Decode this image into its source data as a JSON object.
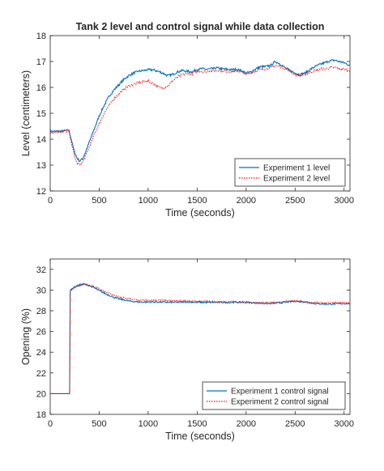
{
  "colors": {
    "series1": "#0072BD",
    "series2": "#FF0000",
    "axis": "#262626",
    "background": "#ffffff"
  },
  "chart_data": [
    {
      "type": "line",
      "title": "Tank 2 level and control signal while data collection",
      "xlabel": "Time (seconds)",
      "ylabel": "Level (centimeters)",
      "xlim": [
        0,
        3060
      ],
      "ylim": [
        12,
        18
      ],
      "xticks": [
        0,
        500,
        1000,
        1500,
        2000,
        2500,
        3000
      ],
      "yticks": [
        12,
        13,
        14,
        15,
        16,
        17,
        18
      ],
      "grid": false,
      "legend_position": "bottom-right",
      "series": [
        {
          "name": "Experiment 1 level",
          "style": "solid",
          "color": "#0072BD",
          "x": [
            0,
            100,
            190,
            215,
            240,
            270,
            300,
            330,
            360,
            400,
            450,
            500,
            550,
            600,
            650,
            700,
            750,
            800,
            850,
            900,
            950,
            1000,
            1050,
            1100,
            1150,
            1200,
            1250,
            1300,
            1350,
            1400,
            1450,
            1500,
            1550,
            1600,
            1650,
            1700,
            1750,
            1800,
            1850,
            1900,
            1950,
            2000,
            2050,
            2100,
            2150,
            2200,
            2250,
            2300,
            2350,
            2400,
            2450,
            2500,
            2550,
            2600,
            2650,
            2700,
            2750,
            2800,
            2850,
            2900,
            2950,
            3000,
            3060
          ],
          "y": [
            14.3,
            14.3,
            14.35,
            14.0,
            13.6,
            13.3,
            13.15,
            13.25,
            13.5,
            13.9,
            14.4,
            14.9,
            15.3,
            15.65,
            15.9,
            16.1,
            16.3,
            16.45,
            16.55,
            16.62,
            16.65,
            16.68,
            16.68,
            16.62,
            16.55,
            16.45,
            16.5,
            16.6,
            16.65,
            16.62,
            16.6,
            16.7,
            16.72,
            16.7,
            16.72,
            16.75,
            16.72,
            16.7,
            16.68,
            16.7,
            16.65,
            16.55,
            16.6,
            16.72,
            16.8,
            16.8,
            16.85,
            17.0,
            16.9,
            16.75,
            16.65,
            16.55,
            16.5,
            16.55,
            16.68,
            16.8,
            16.88,
            16.95,
            17.02,
            17.05,
            17.0,
            16.95,
            16.85
          ]
        },
        {
          "name": "Experiment 2 level",
          "style": "dotted",
          "color": "#FF0000",
          "x": [
            0,
            100,
            190,
            215,
            240,
            270,
            300,
            330,
            360,
            400,
            450,
            500,
            550,
            600,
            650,
            700,
            750,
            800,
            850,
            900,
            950,
            1000,
            1050,
            1100,
            1150,
            1200,
            1250,
            1300,
            1350,
            1400,
            1450,
            1500,
            1550,
            1600,
            1650,
            1700,
            1750,
            1800,
            1850,
            1900,
            1950,
            2000,
            2050,
            2100,
            2150,
            2200,
            2250,
            2300,
            2350,
            2400,
            2450,
            2500,
            2550,
            2600,
            2650,
            2700,
            2750,
            2800,
            2850,
            2900,
            2950,
            3000,
            3060
          ],
          "y": [
            14.25,
            14.3,
            14.3,
            13.9,
            13.45,
            13.1,
            13.0,
            13.1,
            13.35,
            13.7,
            14.2,
            14.6,
            15.0,
            15.3,
            15.55,
            15.75,
            15.92,
            16.05,
            16.12,
            16.18,
            16.22,
            16.25,
            16.15,
            16.02,
            15.98,
            16.05,
            16.25,
            16.4,
            16.5,
            16.52,
            16.55,
            16.6,
            16.62,
            16.62,
            16.65,
            16.65,
            16.65,
            16.62,
            16.6,
            16.62,
            16.6,
            16.5,
            16.55,
            16.65,
            16.7,
            16.72,
            16.75,
            16.85,
            16.8,
            16.72,
            16.62,
            16.5,
            16.45,
            16.5,
            16.58,
            16.65,
            16.7,
            16.72,
            16.75,
            16.78,
            16.72,
            16.7,
            16.65
          ]
        }
      ]
    },
    {
      "type": "line",
      "title": "",
      "xlabel": "Time (seconds)",
      "ylabel": "Opening (%)",
      "xlim": [
        0,
        3060
      ],
      "ylim": [
        18,
        33
      ],
      "xticks": [
        0,
        500,
        1000,
        1500,
        2000,
        2500,
        3000
      ],
      "yticks": [
        18,
        20,
        22,
        24,
        26,
        28,
        30,
        32
      ],
      "grid": false,
      "legend_position": "bottom-right",
      "series": [
        {
          "name": "Experiment 1 control signal",
          "style": "solid",
          "color": "#0072BD",
          "x": [
            0,
            150,
            199,
            200,
            210,
            230,
            260,
            300,
            340,
            380,
            420,
            460,
            500,
            550,
            600,
            650,
            700,
            750,
            800,
            900,
            1000,
            1100,
            1200,
            1300,
            1400,
            1500,
            1600,
            1700,
            1800,
            1900,
            2000,
            2100,
            2200,
            2300,
            2400,
            2500,
            2600,
            2700,
            2800,
            2900,
            3000,
            3060
          ],
          "y": [
            20.0,
            20.0,
            20.0,
            29.8,
            30.0,
            30.2,
            30.35,
            30.5,
            30.6,
            30.5,
            30.35,
            30.15,
            29.95,
            29.7,
            29.5,
            29.3,
            29.15,
            29.05,
            28.95,
            28.85,
            28.85,
            28.85,
            28.82,
            28.82,
            28.85,
            28.82,
            28.8,
            28.82,
            28.8,
            28.82,
            28.8,
            28.75,
            28.7,
            28.72,
            28.82,
            28.92,
            28.85,
            28.7,
            28.65,
            28.65,
            28.7,
            28.7
          ]
        },
        {
          "name": "Experiment 2 control signal",
          "style": "dotted",
          "color": "#FF0000",
          "x": [
            0,
            150,
            199,
            200,
            210,
            230,
            260,
            300,
            340,
            380,
            420,
            460,
            500,
            550,
            600,
            650,
            700,
            750,
            800,
            900,
            1000,
            1100,
            1200,
            1300,
            1400,
            1500,
            1600,
            1700,
            1800,
            1900,
            2000,
            2100,
            2200,
            2300,
            2400,
            2500,
            2600,
            2700,
            2800,
            2900,
            3000,
            3060
          ],
          "y": [
            20.0,
            20.0,
            20.0,
            29.7,
            29.95,
            30.15,
            30.3,
            30.45,
            30.55,
            30.5,
            30.4,
            30.25,
            30.1,
            29.9,
            29.7,
            29.5,
            29.35,
            29.25,
            29.15,
            29.05,
            29.0,
            29.0,
            28.98,
            28.95,
            28.95,
            28.9,
            28.9,
            28.88,
            28.85,
            28.88,
            28.85,
            28.8,
            28.78,
            28.8,
            28.88,
            28.95,
            28.9,
            28.8,
            28.75,
            28.75,
            28.78,
            28.8
          ]
        }
      ]
    }
  ]
}
